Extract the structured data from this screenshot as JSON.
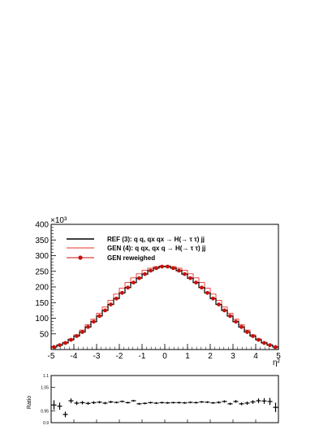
{
  "chart_data": [
    {
      "type": "histogram",
      "xlabel": "η²",
      "ylabel": "",
      "y_multiplier_label": "×10³",
      "xlim": [
        -5,
        5
      ],
      "ylim": [
        0,
        400
      ],
      "x_ticks": [
        "-5",
        "-4",
        "-3",
        "-2",
        "-1",
        "0",
        "1",
        "2",
        "3",
        "4",
        "5"
      ],
      "y_ticks": [
        "50",
        "100",
        "150",
        "200",
        "250",
        "300",
        "350",
        "400"
      ],
      "bins": 40,
      "legend_position": "top-left",
      "series": [
        {
          "name": "REF (3): q q, qx qx  → H(→ τ τ) jj",
          "style": "line",
          "color": "#000000",
          "values": [
            8,
            14,
            21,
            31,
            43,
            56,
            72,
            89,
            107,
            125,
            144,
            163,
            181,
            198,
            214,
            228,
            241,
            252,
            260,
            265,
            265,
            260,
            252,
            241,
            228,
            214,
            198,
            181,
            163,
            144,
            125,
            107,
            89,
            72,
            56,
            43,
            31,
            21,
            14,
            8
          ]
        },
        {
          "name": "GEN (4): q qx, qx q  → H(→ τ τ) jj",
          "style": "line",
          "color": "#e8302a",
          "values": [
            9,
            15,
            23,
            34,
            47,
            62,
            79,
            97,
            116,
            136,
            157,
            177,
            196,
            214,
            229,
            242,
            253,
            260,
            265,
            267,
            267,
            265,
            260,
            253,
            242,
            229,
            214,
            196,
            177,
            157,
            136,
            116,
            97,
            79,
            62,
            47,
            34,
            23,
            15,
            9
          ]
        },
        {
          "name": "GEN reweighed",
          "style": "markers",
          "color": "#c8100b",
          "values": [
            8,
            14,
            21,
            31,
            43,
            56,
            72,
            89,
            107,
            125,
            144,
            163,
            181,
            198,
            214,
            228,
            241,
            252,
            260,
            265,
            265,
            260,
            252,
            241,
            228,
            214,
            198,
            181,
            163,
            144,
            125,
            107,
            89,
            72,
            56,
            43,
            31,
            21,
            14,
            8
          ]
        }
      ]
    },
    {
      "type": "scatter",
      "ylabel": "Ratio",
      "xlim": [
        -5,
        5
      ],
      "ylim": [
        0.9,
        1.1
      ],
      "y_ticks": [
        "0.9",
        "0.95",
        "1.05",
        "1.1"
      ],
      "x_ticks_count": 11,
      "series": [
        {
          "name": "",
          "color": "#000000",
          "values": [
            0.975,
            0.97,
            0.935,
            0.993,
            0.983,
            0.985,
            0.982,
            0.985,
            0.987,
            0.983,
            0.988,
            0.986,
            0.99,
            0.985,
            0.993,
            0.98,
            0.982,
            0.985,
            0.983,
            0.985,
            0.984,
            0.985,
            0.985,
            0.984,
            0.986,
            0.985,
            0.988,
            0.987,
            0.984,
            0.986,
            0.99,
            0.98,
            0.99,
            0.98,
            0.983,
            0.988,
            0.993,
            0.992,
            0.99,
            0.965
          ],
          "errors": [
            0.02,
            0.015,
            0.012,
            0.01,
            0.008,
            0.007,
            0.006,
            0.006,
            0.005,
            0.005,
            0.005,
            0.004,
            0.004,
            0.004,
            0.004,
            0.004,
            0.004,
            0.004,
            0.004,
            0.004,
            0.004,
            0.004,
            0.004,
            0.004,
            0.004,
            0.004,
            0.004,
            0.004,
            0.004,
            0.005,
            0.005,
            0.005,
            0.006,
            0.006,
            0.007,
            0.008,
            0.01,
            0.012,
            0.015,
            0.02
          ]
        }
      ]
    }
  ]
}
